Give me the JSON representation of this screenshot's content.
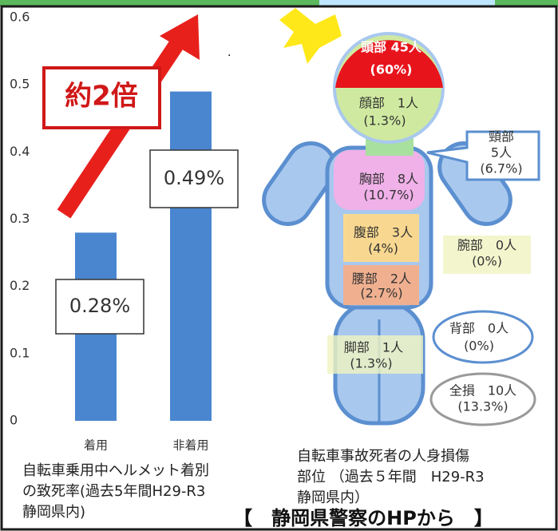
{
  "chart_data": {
    "type": "bar",
    "categories": [
      "着用",
      "非着用"
    ],
    "values": [
      0.28,
      0.49
    ],
    "value_labels": [
      "0.28%",
      "0.49%"
    ],
    "color": "#4a86d0",
    "ylim": [
      0,
      0.6
    ],
    "yticks": [
      0,
      0.1,
      0.2,
      0.3,
      0.4,
      0.5,
      0.6
    ],
    "annotation": "約2倍",
    "caption": [
      "自転車乗用中ヘルメット着別",
      "の致死率(過去5年間H29-R3",
      "静岡県内)"
    ]
  },
  "body_diagram": {
    "parts": [
      {
        "lines": [
          "頭部 45人",
          "(60%)"
        ]
      },
      {
        "lines": [
          "顔部　1人",
          "(1.3%)"
        ]
      },
      {
        "lines": [
          "頸部",
          "5人",
          "(6.7%)"
        ]
      },
      {
        "lines": [
          "胸部　8人",
          "(10.7%)"
        ]
      },
      {
        "lines": [
          "腹部　3人",
          "(4%)"
        ]
      },
      {
        "lines": [
          "腰部　2人",
          "(2.7%)"
        ]
      },
      {
        "lines": [
          "腕部　0人",
          "(0%)"
        ]
      },
      {
        "lines": [
          "背部　0人",
          "(0%)"
        ]
      },
      {
        "lines": [
          "脚部　1人",
          "(1.3%)"
        ]
      },
      {
        "lines": [
          "全損　10人",
          "(13.3%)"
        ]
      }
    ],
    "caption": [
      "自転車事故死者の人身損傷",
      "部位 （過去５年間　H29-R3",
      "静岡県内）"
    ]
  },
  "footer": "【　静岡県警察のHPから　】"
}
